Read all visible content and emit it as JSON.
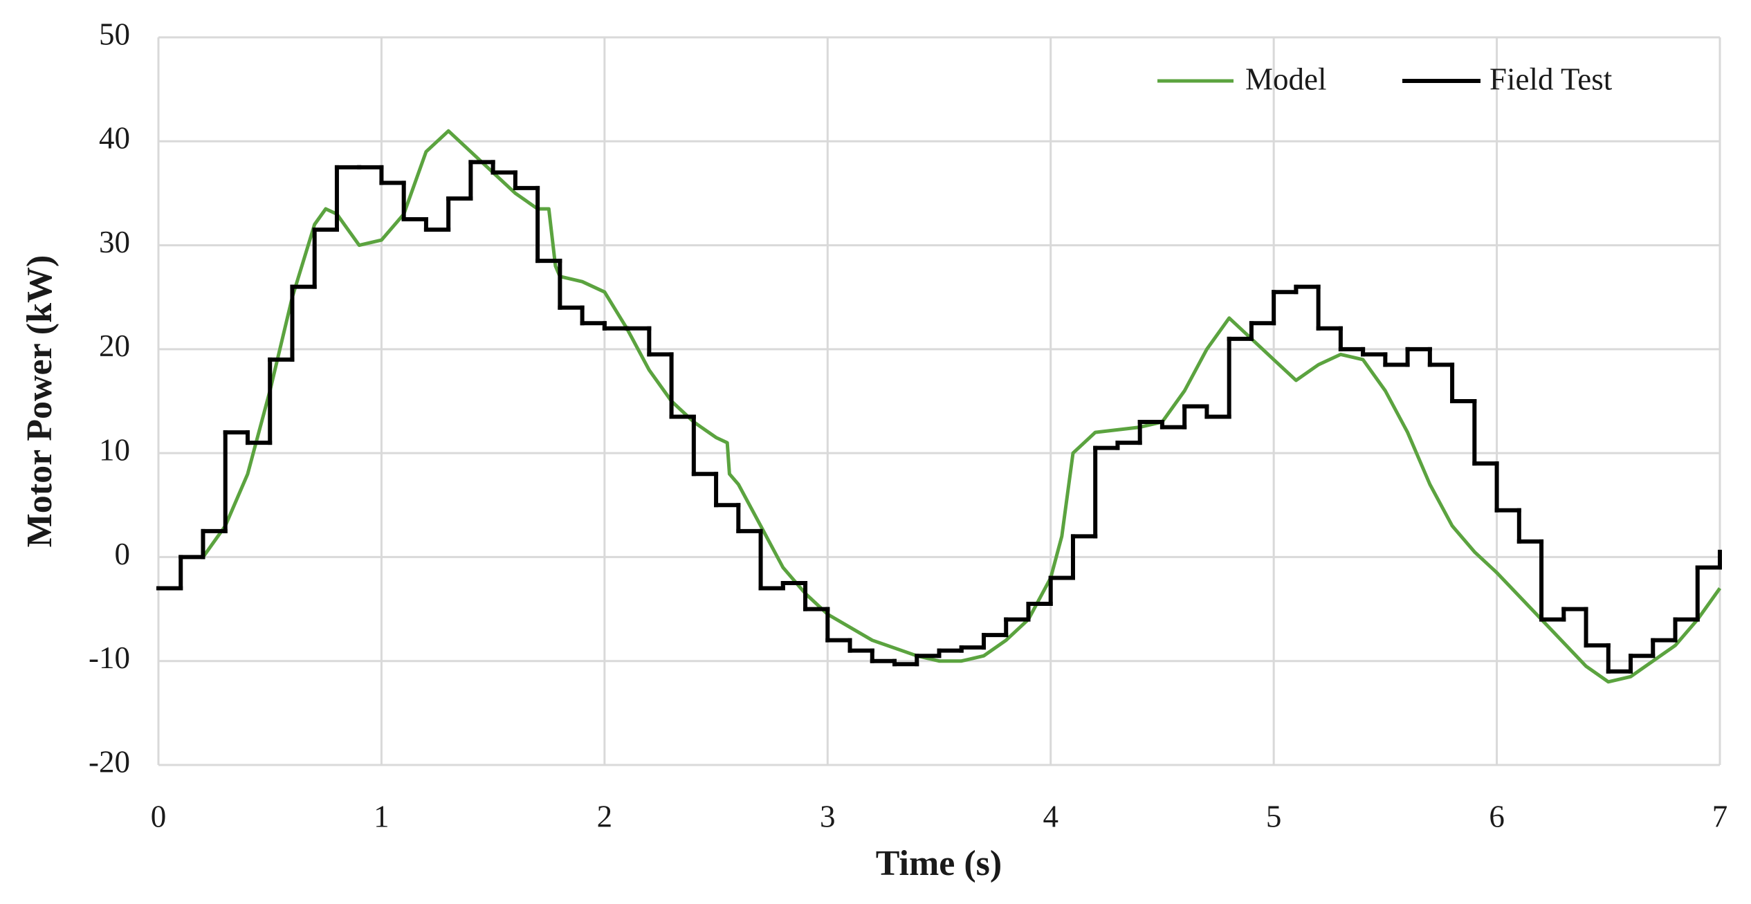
{
  "chart_data": {
    "type": "line",
    "xlabel": "Time (s)",
    "ylabel": "Motor Power (kW)",
    "xlim": [
      0,
      7
    ],
    "xticks": [
      0,
      1,
      2,
      3,
      4,
      5,
      6,
      7
    ],
    "ylim": [
      -20,
      50
    ],
    "yticks": [
      -20,
      -10,
      0,
      10,
      20,
      30,
      40,
      50
    ],
    "grid": true,
    "legend": "upper right",
    "series": [
      {
        "name": "Model",
        "color": "#5ba33f",
        "x": [
          0.2,
          0.3,
          0.4,
          0.5,
          0.6,
          0.7,
          0.75,
          0.8,
          0.9,
          1.0,
          1.1,
          1.2,
          1.3,
          1.4,
          1.5,
          1.6,
          1.7,
          1.75,
          1.78,
          1.8,
          1.9,
          2.0,
          2.1,
          2.2,
          2.3,
          2.4,
          2.5,
          2.55,
          2.56,
          2.6,
          2.7,
          2.8,
          2.9,
          3.0,
          3.2,
          3.4,
          3.5,
          3.6,
          3.7,
          3.8,
          3.9,
          4.0,
          4.05,
          4.1,
          4.2,
          4.4,
          4.5,
          4.6,
          4.7,
          4.8,
          4.9,
          5.0,
          5.1,
          5.2,
          5.3,
          5.4,
          5.5,
          5.6,
          5.7,
          5.8,
          5.9,
          6.0,
          6.2,
          6.4,
          6.5,
          6.6,
          6.7,
          6.8,
          6.9,
          7.0
        ],
        "values": [
          0,
          3,
          8,
          16,
          25,
          32,
          33.5,
          33,
          30,
          30.5,
          33,
          39,
          41,
          39,
          37,
          35,
          33.5,
          33.5,
          28,
          27,
          26.5,
          25.5,
          22,
          18,
          15,
          13,
          11.5,
          11,
          8,
          7,
          3,
          -1,
          -3.5,
          -5.5,
          -8,
          -9.5,
          -10,
          -10,
          -9.5,
          -8,
          -6,
          -2,
          2,
          10,
          12,
          12.5,
          13,
          16,
          20,
          23,
          21,
          19,
          17,
          18.5,
          19.5,
          19,
          16,
          12,
          7,
          3,
          0.5,
          -1.5,
          -6,
          -10.5,
          -12,
          -11.5,
          -10,
          -8.5,
          -6,
          -3
        ]
      },
      {
        "name": "Field Test",
        "color": "#000000",
        "step": "post",
        "x": [
          0,
          0.1,
          0.2,
          0.3,
          0.4,
          0.5,
          0.6,
          0.7,
          0.8,
          0.9,
          1.0,
          1.1,
          1.2,
          1.3,
          1.4,
          1.5,
          1.6,
          1.7,
          1.8,
          1.9,
          2.0,
          2.1,
          2.2,
          2.3,
          2.4,
          2.5,
          2.6,
          2.7,
          2.8,
          2.9,
          3.0,
          3.1,
          3.2,
          3.3,
          3.4,
          3.5,
          3.6,
          3.7,
          3.8,
          3.9,
          4.0,
          4.1,
          4.2,
          4.3,
          4.4,
          4.5,
          4.6,
          4.7,
          4.8,
          4.9,
          5.0,
          5.1,
          5.2,
          5.3,
          5.4,
          5.5,
          5.6,
          5.7,
          5.8,
          5.9,
          6.0,
          6.1,
          6.2,
          6.3,
          6.4,
          6.5,
          6.6,
          6.7,
          6.8,
          6.9,
          7.0
        ],
        "values": [
          -3,
          0,
          2.5,
          12,
          11,
          19,
          26,
          31.5,
          37.5,
          37.5,
          36,
          32.5,
          31.5,
          34.5,
          38,
          37,
          35.5,
          28.5,
          24,
          22.5,
          22,
          22,
          19.5,
          13.5,
          8,
          5,
          2.5,
          -3,
          -2.5,
          -5,
          -8,
          -9,
          -10,
          -10.3,
          -9.5,
          -9,
          -8.7,
          -7.5,
          -6,
          -4.5,
          -2,
          2,
          10.5,
          11,
          13,
          12.5,
          14.5,
          13.5,
          21,
          22.5,
          25.5,
          26,
          22,
          20,
          19.5,
          18.5,
          20,
          18.5,
          15,
          9,
          4.5,
          1.5,
          -6,
          -5,
          -8.5,
          -11,
          -9.5,
          -8,
          -6,
          -1,
          0.5
        ]
      }
    ]
  }
}
